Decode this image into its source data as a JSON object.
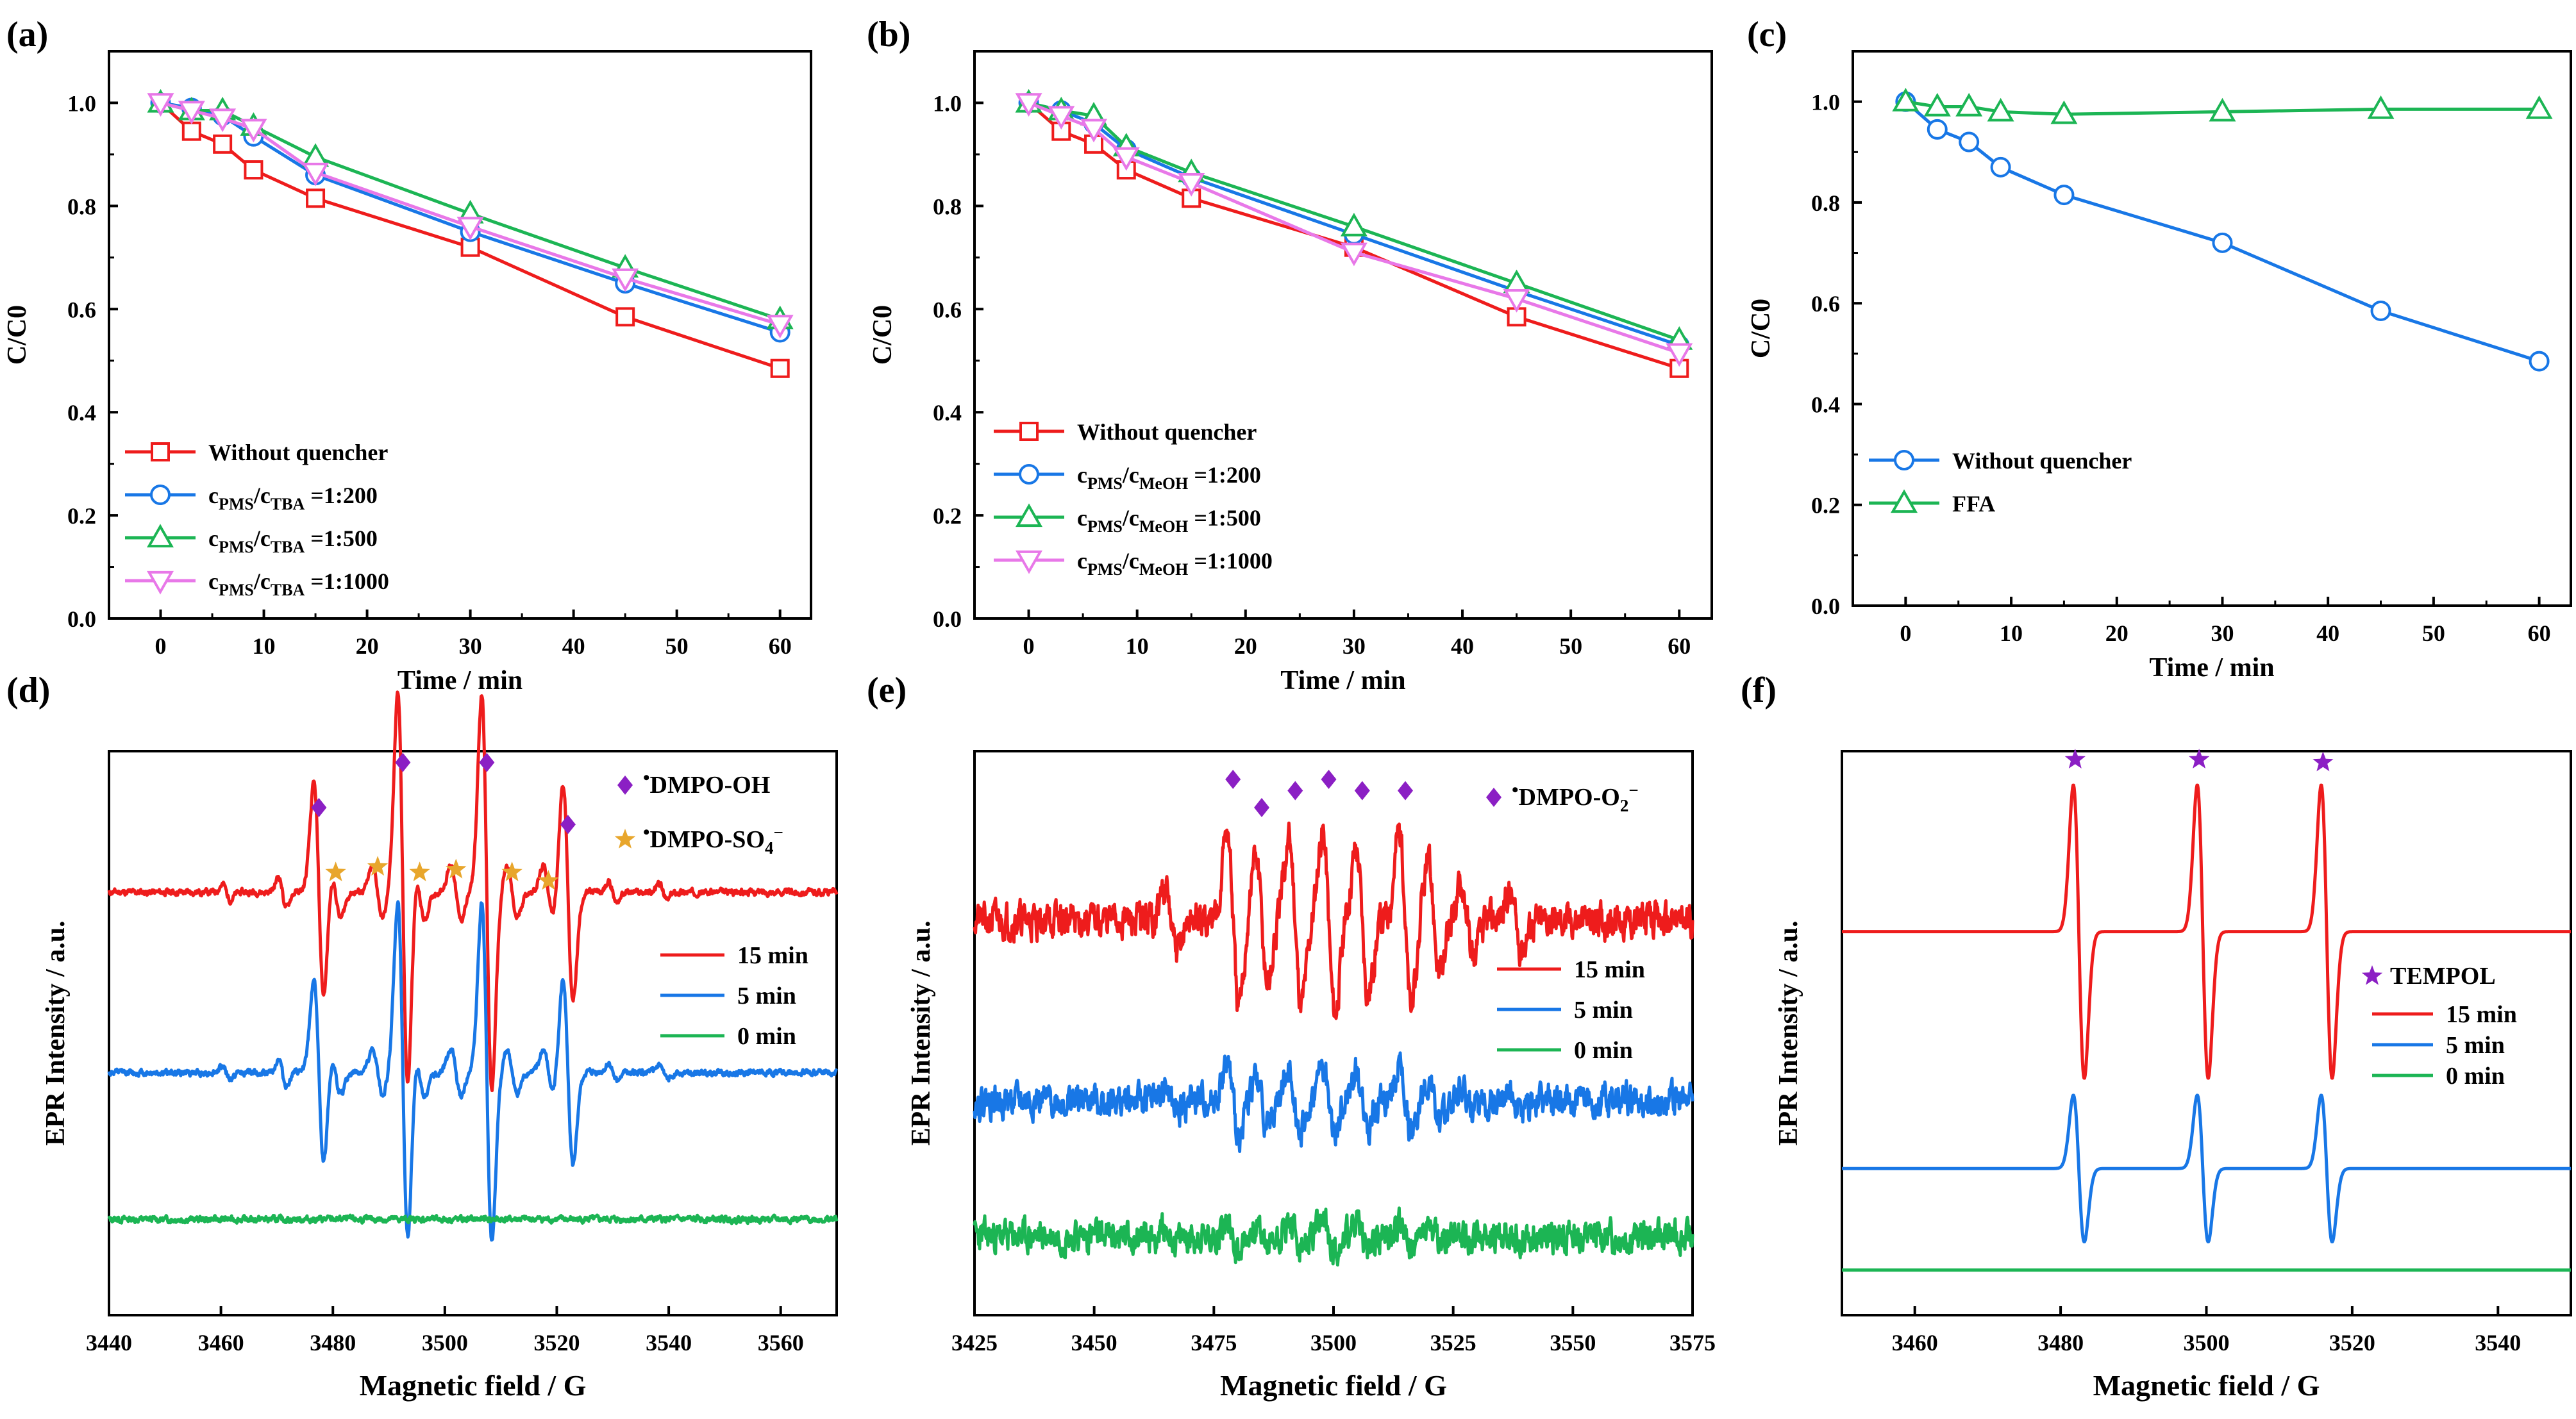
{
  "colors": {
    "red": "#ee1c1c",
    "blue": "#1877e6",
    "green": "#1cb554",
    "pink": "#e878e8",
    "purple": "#8b1fc4",
    "gold": "#e8a62c",
    "axis": "#000000"
  },
  "chart_data": [
    {
      "panel": "a",
      "panel_label": "(a)",
      "type": "line",
      "xlabel": "Time / min",
      "ylabel": "C/C0",
      "xlim": [
        -5,
        63
      ],
      "ylim": [
        0,
        1.1
      ],
      "xticks": [
        0,
        10,
        20,
        30,
        40,
        50,
        60
      ],
      "yticks": [
        0.0,
        0.2,
        0.4,
        0.6,
        0.8,
        1.0
      ],
      "ytick_labels": [
        "0.0",
        "0.2",
        "0.4",
        "0.6",
        "0.8",
        "1.0"
      ],
      "legend_position": "bottom-left",
      "series": [
        {
          "name": "Without quencher",
          "color": "red",
          "marker": "square",
          "legend": {
            "base": "Without quencher"
          },
          "x": [
            0,
            3,
            6,
            9,
            15,
            30,
            45,
            60
          ],
          "y": [
            1.0,
            0.945,
            0.92,
            0.87,
            0.815,
            0.72,
            0.585,
            0.485
          ]
        },
        {
          "name": "cPMS/cTBA =1:200",
          "color": "blue",
          "marker": "circle",
          "legend": {
            "base": "c",
            "sub1": "PMS",
            "mid": "/c",
            "sub2": "TBA",
            "tail": " =1:200"
          },
          "x": [
            0,
            3,
            6,
            9,
            15,
            30,
            45,
            60
          ],
          "y": [
            1.0,
            0.99,
            0.975,
            0.935,
            0.86,
            0.75,
            0.65,
            0.555
          ]
        },
        {
          "name": "cPMS/cTBA =1:500",
          "color": "green",
          "marker": "triangle-up",
          "legend": {
            "base": "c",
            "sub1": "PMS",
            "mid": "/c",
            "sub2": "TBA",
            "tail": " =1:500"
          },
          "x": [
            0,
            3,
            6,
            9,
            15,
            30,
            45,
            60
          ],
          "y": [
            1.0,
            0.985,
            0.985,
            0.955,
            0.895,
            0.785,
            0.68,
            0.58
          ]
        },
        {
          "name": "cPMS/cTBA =1:1000",
          "color": "pink",
          "marker": "triangle-down",
          "legend": {
            "base": "c",
            "sub1": "PMS",
            "mid": "/c",
            "sub2": "TBA",
            "tail": " =1:1000"
          },
          "x": [
            0,
            3,
            6,
            9,
            15,
            30,
            45,
            60
          ],
          "y": [
            1.0,
            0.985,
            0.97,
            0.95,
            0.865,
            0.76,
            0.66,
            0.57
          ]
        }
      ]
    },
    {
      "panel": "b",
      "panel_label": "(b)",
      "type": "line",
      "xlabel": "Time / min",
      "ylabel": "C/C0",
      "xlim": [
        -5,
        63
      ],
      "ylim": [
        0,
        1.1
      ],
      "xticks": [
        0,
        10,
        20,
        30,
        40,
        50,
        60
      ],
      "yticks": [
        0.0,
        0.2,
        0.4,
        0.6,
        0.8,
        1.0
      ],
      "ytick_labels": [
        "0.0",
        "0.2",
        "0.4",
        "0.6",
        "0.8",
        "1.0"
      ],
      "legend_position": "bottom-left",
      "series": [
        {
          "name": "Without quencher",
          "color": "red",
          "marker": "square",
          "legend": {
            "base": "Without quencher"
          },
          "x": [
            0,
            3,
            6,
            9,
            15,
            30,
            45,
            60
          ],
          "y": [
            1.0,
            0.945,
            0.92,
            0.87,
            0.815,
            0.72,
            0.585,
            0.485
          ]
        },
        {
          "name": "cPMS/cMeOH =1:200",
          "color": "blue",
          "marker": "circle",
          "legend": {
            "base": "c",
            "sub1": "PMS",
            "mid": "/c",
            "sub2": "MeOH",
            "tail": " =1:200"
          },
          "x": [
            0,
            3,
            6,
            9,
            15,
            30,
            45,
            60
          ],
          "y": [
            1.0,
            0.985,
            0.96,
            0.91,
            0.855,
            0.745,
            0.635,
            0.53
          ]
        },
        {
          "name": "cPMS/cMeOH =1:500",
          "color": "green",
          "marker": "triangle-up",
          "legend": {
            "base": "c",
            "sub1": "PMS",
            "mid": "/c",
            "sub2": "MeOH",
            "tail": " =1:500"
          },
          "x": [
            0,
            3,
            6,
            9,
            15,
            30,
            45,
            60
          ],
          "y": [
            1.0,
            0.985,
            0.975,
            0.915,
            0.865,
            0.76,
            0.65,
            0.54
          ]
        },
        {
          "name": "cPMS/cMeOH =1:1000",
          "color": "pink",
          "marker": "triangle-down",
          "legend": {
            "base": "c",
            "sub1": "PMS",
            "mid": "/c",
            "sub2": "MeOH",
            "tail": " =1:1000"
          },
          "x": [
            0,
            3,
            6,
            9,
            15,
            30,
            45,
            60
          ],
          "y": [
            1.0,
            0.975,
            0.95,
            0.895,
            0.845,
            0.71,
            0.62,
            0.515
          ]
        }
      ]
    },
    {
      "panel": "c",
      "panel_label": "(c)",
      "type": "line",
      "xlabel": "Time / min",
      "ylabel": "C/C0",
      "xlim": [
        -5,
        63
      ],
      "ylim": [
        0,
        1.1
      ],
      "xticks": [
        0,
        10,
        20,
        30,
        40,
        50,
        60
      ],
      "yticks": [
        0.0,
        0.2,
        0.4,
        0.6,
        0.8,
        1.0
      ],
      "ytick_labels": [
        "0.0",
        "0.2",
        "0.4",
        "0.6",
        "0.8",
        "1.0"
      ],
      "legend_position": "bottom-left",
      "series": [
        {
          "name": "Without quencher",
          "color": "blue",
          "marker": "circle",
          "legend": {
            "base": "Without quencher"
          },
          "x": [
            0,
            3,
            6,
            9,
            15,
            30,
            45,
            60
          ],
          "y": [
            1.0,
            0.945,
            0.92,
            0.87,
            0.815,
            0.72,
            0.585,
            0.485
          ]
        },
        {
          "name": "FFA",
          "color": "green",
          "marker": "triangle-up",
          "legend": {
            "base": "FFA"
          },
          "x": [
            0,
            3,
            6,
            9,
            15,
            30,
            45,
            60
          ],
          "y": [
            1.0,
            0.99,
            0.99,
            0.98,
            0.975,
            0.98,
            0.985,
            0.985
          ]
        }
      ]
    },
    {
      "panel": "d",
      "panel_label": "(d)",
      "type": "line",
      "xlabel": "Magnetic field / G",
      "ylabel": "EPR Intensity / a.u.",
      "xlim": [
        3440,
        3570
      ],
      "xticks": [
        3440,
        3460,
        3480,
        3500,
        3520,
        3540,
        3560
      ],
      "legend_position": "right",
      "series": [
        {
          "name": "15 min",
          "color": "red",
          "baseline": 0.75,
          "amp": 0.35,
          "noise": 0.004,
          "seed": 11
        },
        {
          "name": "5 min",
          "color": "blue",
          "baseline": 0.43,
          "amp": 0.3,
          "noise": 0.004,
          "seed": 12
        },
        {
          "name": "0 min",
          "color": "green",
          "baseline": 0.17,
          "amp": 0.0,
          "noise": 0.004,
          "seed": 13
        }
      ],
      "peaks": [
        {
          "x": 3477.5,
          "h": 0.55,
          "w": 0.9
        },
        {
          "x": 3492.5,
          "h": 1.0,
          "w": 0.9
        },
        {
          "x": 3507.5,
          "h": 1.0,
          "w": 0.9
        },
        {
          "x": 3522.0,
          "h": 0.55,
          "w": 0.9
        },
        {
          "x": 3480.5,
          "h": 0.13,
          "w": 0.9
        },
        {
          "x": 3488.0,
          "h": 0.13,
          "w": 0.9
        },
        {
          "x": 3495.5,
          "h": 0.14,
          "w": 0.9
        },
        {
          "x": 3502.0,
          "h": 0.14,
          "w": 0.9
        },
        {
          "x": 3512.0,
          "h": 0.13,
          "w": 0.9
        },
        {
          "x": 3518.5,
          "h": 0.13,
          "w": 0.9
        },
        {
          "x": 3461.0,
          "h": 0.04,
          "w": 0.7
        },
        {
          "x": 3471.0,
          "h": 0.08,
          "w": 0.7
        },
        {
          "x": 3530.0,
          "h": 0.05,
          "w": 0.7
        },
        {
          "x": 3539.0,
          "h": 0.04,
          "w": 0.7
        }
      ],
      "markers": [
        {
          "kind": "diamond",
          "color": "purple",
          "x": [
            3477.5,
            3492.5,
            3507.5,
            3522.0
          ],
          "y": [
            0.9,
            0.98,
            0.98,
            0.87
          ]
        },
        {
          "kind": "star",
          "color": "gold",
          "x": [
            3480.5,
            3488.0,
            3495.5,
            3502.0,
            3512.0,
            3518.5
          ],
          "y": [
            0.785,
            0.795,
            0.785,
            0.79,
            0.785,
            0.77
          ]
        }
      ],
      "species_legend": [
        {
          "kind": "diamond",
          "color": "purple",
          "dot": "•",
          "base": "DMPO-OH"
        },
        {
          "kind": "star",
          "color": "gold",
          "dot": "•",
          "base": "DMPO-SO",
          "sub": "4",
          "sup": "−"
        }
      ]
    },
    {
      "panel": "e",
      "panel_label": "(e)",
      "type": "line",
      "xlabel": "Magnetic field / G",
      "ylabel": "EPR Intensity / a.u.",
      "xlim": [
        3425,
        3575
      ],
      "xticks": [
        3425,
        3450,
        3475,
        3500,
        3525,
        3550,
        3575
      ],
      "legend_position": "right",
      "series": [
        {
          "name": "15 min",
          "color": "red",
          "baseline": 0.7,
          "amp": 0.16,
          "noise": 0.022,
          "seed": 21
        },
        {
          "name": "5 min",
          "color": "blue",
          "baseline": 0.38,
          "amp": 0.06,
          "noise": 0.02,
          "seed": 22
        },
        {
          "name": "0 min",
          "color": "green",
          "baseline": 0.14,
          "amp": 0.025,
          "noise": 0.02,
          "seed": 23
        }
      ],
      "peaks": [
        {
          "x": 3479,
          "h": 1.0,
          "w": 1.3
        },
        {
          "x": 3485,
          "h": 0.7,
          "w": 1.3
        },
        {
          "x": 3492,
          "h": 0.9,
          "w": 1.3
        },
        {
          "x": 3499,
          "h": 1.0,
          "w": 1.3
        },
        {
          "x": 3506,
          "h": 0.8,
          "w": 1.3
        },
        {
          "x": 3515,
          "h": 1.0,
          "w": 1.3
        },
        {
          "x": 3521,
          "h": 0.6,
          "w": 1.3
        },
        {
          "x": 3466,
          "h": 0.35,
          "w": 1.3
        },
        {
          "x": 3528,
          "h": 0.4,
          "w": 1.3
        },
        {
          "x": 3538,
          "h": 0.3,
          "w": 1.3
        }
      ],
      "markers": [
        {
          "kind": "diamond",
          "color": "purple",
          "x": [
            3479,
            3485,
            3492,
            3499,
            3506,
            3515
          ],
          "y": [
            0.95,
            0.9,
            0.93,
            0.95,
            0.93,
            0.93
          ]
        }
      ],
      "species_legend": [
        {
          "kind": "diamond",
          "color": "purple",
          "dot": "•",
          "base": "DMPO-O",
          "sub": "2",
          "sup": "−"
        }
      ]
    },
    {
      "panel": "f",
      "panel_label": "(f)",
      "type": "line",
      "xlabel": "Magnetic field / G",
      "ylabel": "EPR Intensity / a.u.",
      "xlim": [
        3450,
        3550
      ],
      "xticks": [
        3460,
        3480,
        3500,
        3520,
        3540
      ],
      "legend_position": "right",
      "series": [
        {
          "name": "15 min",
          "color": "red",
          "baseline": 0.68,
          "amp": 0.26,
          "noise": 0.0,
          "seed": 31
        },
        {
          "name": "5 min",
          "color": "blue",
          "baseline": 0.26,
          "amp": 0.13,
          "noise": 0.0,
          "seed": 32
        },
        {
          "name": "0 min",
          "color": "green",
          "baseline": 0.08,
          "amp": 0.0,
          "noise": 0.0,
          "seed": 33
        }
      ],
      "peaks": [
        {
          "x": 3482.5,
          "h": 1.0,
          "w": 0.75
        },
        {
          "x": 3499.5,
          "h": 1.0,
          "w": 0.75
        },
        {
          "x": 3516.5,
          "h": 1.0,
          "w": 0.75
        }
      ],
      "markers": [
        {
          "kind": "star",
          "color": "purple",
          "x": [
            3482,
            3499,
            3516
          ],
          "y": [
            0.985,
            0.985,
            0.98
          ]
        }
      ],
      "species_legend": [
        {
          "kind": "star",
          "color": "purple",
          "dot": "",
          "base": "TEMPOL"
        }
      ]
    }
  ]
}
